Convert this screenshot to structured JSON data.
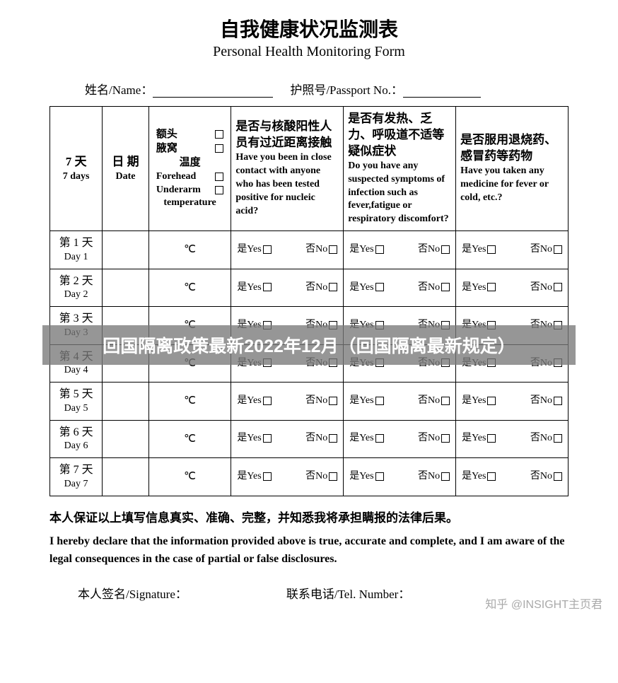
{
  "title": {
    "cn": "自我健康状况监测表",
    "en": "Personal Health Monitoring Form"
  },
  "fields": {
    "name_label": "姓名/Name：",
    "passport_label": "护照号/Passport No.："
  },
  "table": {
    "headers": {
      "days": {
        "cn": "7 天",
        "en": "7 days"
      },
      "date": {
        "cn": "日 期",
        "en": "Date"
      },
      "temp": {
        "line1": "额头",
        "line2": "腋窝",
        "line3": "温度",
        "en1": "Forehead",
        "en2": "Underarm",
        "en3": "temperature"
      },
      "q1": {
        "cn": "是否与核酸阳性人员有过近距离接触",
        "en": "Have you been in close contact with anyone who has been tested positive for nucleic acid?"
      },
      "q2": {
        "cn": "是否有发热、乏力、呼吸道不适等疑似症状",
        "en": "Do you have any suspected symptoms of infection such as fever,fatigue or respiratory discomfort?"
      },
      "q3": {
        "cn": "是否服用退烧药、感冒药等药物",
        "en": "Have you taken any medicine for fever or cold, etc.?"
      }
    },
    "rows": [
      {
        "cn": "第 1 天",
        "en": "Day 1"
      },
      {
        "cn": "第 2 天",
        "en": "Day 2"
      },
      {
        "cn": "第 3 天",
        "en": "Day 3"
      },
      {
        "cn": "第 4 天",
        "en": "Day 4"
      },
      {
        "cn": "第 5 天",
        "en": "Day 5"
      },
      {
        "cn": "第 6 天",
        "en": "Day 6"
      },
      {
        "cn": "第 7 天",
        "en": "Day 7"
      }
    ],
    "temp_unit": "℃",
    "yes_label": "是Yes",
    "no_label": "否No"
  },
  "declaration": {
    "cn": "本人保证以上填写信息真实、准确、完整，并知悉我将承担瞒报的法律后果。",
    "en": "I hereby declare that the information provided above is true, accurate and complete, and I am aware of the legal consequences in the case of partial or false disclosures."
  },
  "signature": {
    "sign_label": "本人签名/Signature：",
    "tel_label": "联系电话/Tel. Number："
  },
  "overlay_text": "回国隔离政策最新2022年12月（回国隔离最新规定）",
  "watermark": "知乎 @INSIGHT主页君"
}
